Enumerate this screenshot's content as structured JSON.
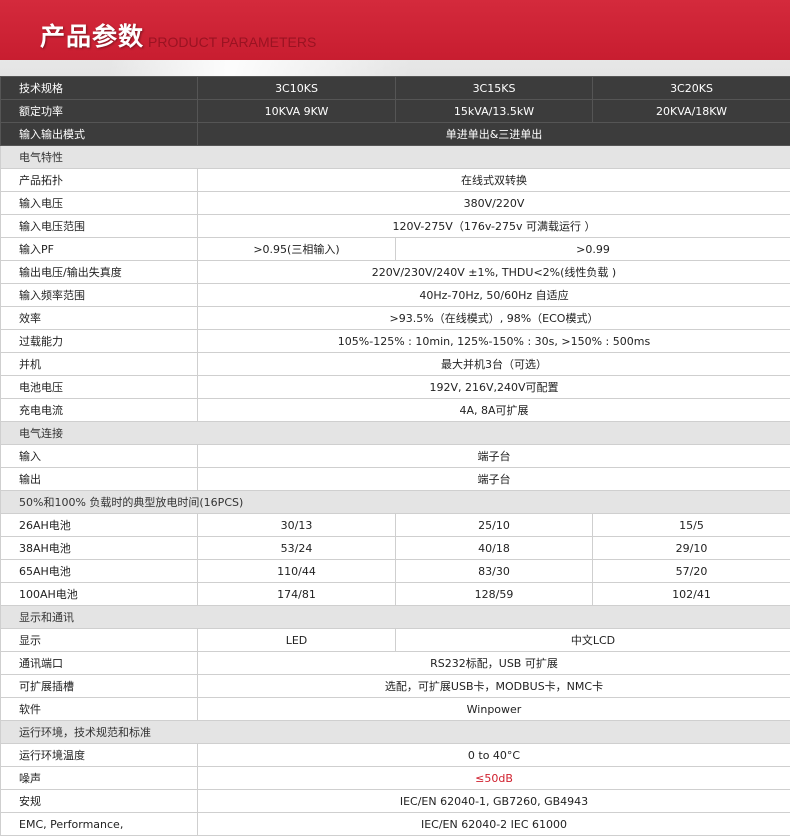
{
  "header": {
    "title_cn": "产品参数",
    "title_en": "PRODUCT PARAMETERS"
  },
  "colors": {
    "brand_red": "#c81d30",
    "header_row": "#3c3c3c",
    "section_row": "#e4e4e4",
    "highlight": "#d0202e"
  },
  "rows": [
    {
      "type": "hd",
      "label": "技术规格",
      "cells": [
        "3C10KS",
        "3C15KS",
        "3C20KS"
      ]
    },
    {
      "type": "hd",
      "label": "额定功率",
      "cells": [
        "10KVA 9KW",
        "15kVA/13.5kW",
        "20KVA/18KW"
      ]
    },
    {
      "type": "hd",
      "label": "输入输出模式",
      "cells": [
        "单进单出&三进单出"
      ]
    },
    {
      "type": "sec",
      "label": "电气特性"
    },
    {
      "label": "产品拓扑",
      "cells": [
        "在线式双转换"
      ]
    },
    {
      "label": "输入电压",
      "cells": [
        "380V/220V"
      ]
    },
    {
      "label": "输入电压范围",
      "cells": [
        "120V-275V（176v-275v 可满载运行 ）"
      ]
    },
    {
      "label": "输入PF",
      "cells": [
        ">0.95(三相输入)",
        ">0.99"
      ],
      "split": [
        1,
        2
      ]
    },
    {
      "label": "输出电压/输出失真度",
      "cells": [
        "220V/230V/240V ±1%, THDU<2%(线性负载 )"
      ]
    },
    {
      "label": "输入频率范围",
      "cells": [
        "40Hz-70Hz, 50/60Hz 自适应"
      ]
    },
    {
      "label": "效率",
      "cells": [
        ">93.5%（在线模式）, 98%（ECO模式）"
      ]
    },
    {
      "label": "过载能力",
      "cells": [
        "105%-125% : 10min, 125%-150% : 30s, >150% : 500ms"
      ]
    },
    {
      "label": "并机",
      "cells": [
        "最大并机3台（可选）"
      ]
    },
    {
      "label": "电池电压",
      "cells": [
        "192V, 216V,240V可配置"
      ]
    },
    {
      "label": "充电电流",
      "cells": [
        "4A, 8A可扩展"
      ]
    },
    {
      "type": "sec",
      "label": "电气连接"
    },
    {
      "label": "输入",
      "cells": [
        "端子台"
      ]
    },
    {
      "label": "输出",
      "cells": [
        "端子台"
      ]
    },
    {
      "type": "sec",
      "label": "50%和100% 负载时的典型放电时间(16PCS)"
    },
    {
      "label": "26AH电池",
      "cells": [
        "30/13",
        "25/10",
        "15/5"
      ]
    },
    {
      "label": "38AH电池",
      "cells": [
        "53/24",
        "40/18",
        "29/10"
      ]
    },
    {
      "label": "65AH电池",
      "cells": [
        "110/44",
        "83/30",
        "57/20"
      ]
    },
    {
      "label": "100AH电池",
      "cells": [
        "174/81",
        "128/59",
        "102/41"
      ]
    },
    {
      "type": "sec",
      "label": "显示和通讯"
    },
    {
      "label": "显示",
      "cells": [
        "LED",
        "中文LCD"
      ],
      "split": [
        1,
        2
      ]
    },
    {
      "label": "通讯端口",
      "cells": [
        "RS232标配，USB 可扩展"
      ]
    },
    {
      "label": "可扩展插槽",
      "cells": [
        "选配，可扩展USB卡，MODBUS卡，NMC卡"
      ]
    },
    {
      "label": "软件",
      "cells": [
        "Winpower"
      ]
    },
    {
      "type": "sec",
      "label": "运行环境，技术规范和标准"
    },
    {
      "label": "运行环境温度",
      "cells": [
        "0 to 40°C"
      ]
    },
    {
      "label": "噪声",
      "cells": [
        "≤50dB"
      ],
      "highlight": true
    },
    {
      "label": "安规",
      "cells": [
        "IEC/EN 62040-1, GB7260, GB4943"
      ]
    },
    {
      "label": "EMC, Performance,",
      "cells": [
        "IEC/EN 62040-2  IEC 61000"
      ]
    }
  ]
}
